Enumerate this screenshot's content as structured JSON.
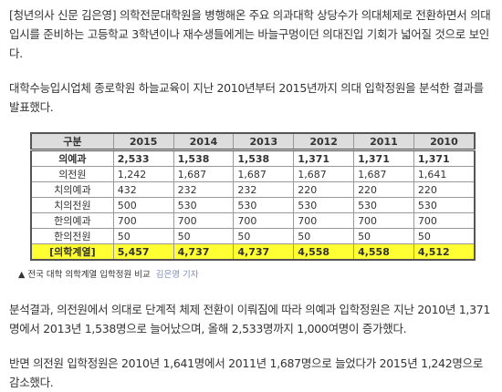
{
  "paragraphs": [
    "[청년의사 신문 김은영] 의학전문대학원을 병행해온 주요 의과대학 상당수가 의대체제로 전환하면서 의대입시를 준비하는 고등학교 3학년이나 재수생들에게는 바늘구멍이던 의대진입 기회가 넓어질 것으로 보인다.",
    "대학수능입시업체 종로학원 하늘교육이 지난 2010년부터 2015년까지 의대 입학정원을 분석한 결과를 발표했다."
  ],
  "table": {
    "header": [
      "구분",
      "2015",
      "2014",
      "2013",
      "2012",
      "2011",
      "2010"
    ],
    "rows": [
      [
        "의예과",
        "2,533",
        "1,538",
        "1,538",
        "1,371",
        "1,371",
        "1,371"
      ],
      [
        "의전원",
        "1,242",
        "1,687",
        "1,687",
        "1,687",
        "1,687",
        "1,641"
      ],
      [
        "치의예과",
        "432",
        "232",
        "232",
        "220",
        "220",
        "220"
      ],
      [
        "치의전원",
        "500",
        "530",
        "530",
        "530",
        "530",
        "530"
      ],
      [
        "한의예과",
        "700",
        "700",
        "700",
        "700",
        "700",
        "700"
      ],
      [
        "한의전원",
        "50",
        "50",
        "50",
        "50",
        "50",
        "50"
      ],
      [
        "[의학계열]",
        "5,457",
        "4,737",
        "4,737",
        "4,558",
        "4,558",
        "4,512"
      ]
    ]
  },
  "caption": {
    "text": "▲ 전국 대학 의학계열 입학정원 비교",
    "credit": "김은영 기자"
  },
  "paragraphs_after": [
    "분석결과, 의전원에서 의대로 단계적 체제 전환이 이뤄짐에 따라 의예과 입학정원은 지난 2010년 1,371명에서 2013년 1,538명으로 늘어났으며, 올해 2,533명까지 1,000여명이 증가했다.",
    "반면 의전원 입학정원은 2010년 1,641명에서 2011년 1,687명으로 늘었다가 2015년 1,242명으로 감소했다."
  ]
}
